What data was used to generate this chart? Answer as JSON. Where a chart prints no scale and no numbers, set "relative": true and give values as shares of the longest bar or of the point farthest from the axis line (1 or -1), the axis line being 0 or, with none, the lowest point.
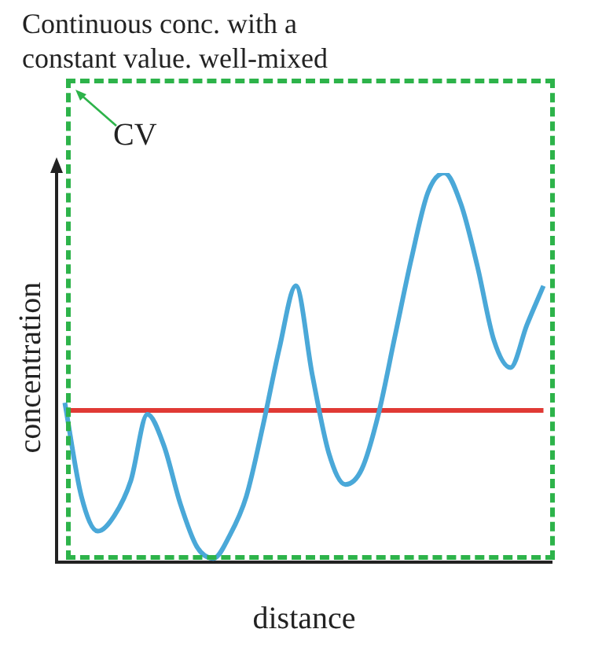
{
  "chart_data": {
    "type": "line",
    "title": "Continuous conc. with a constant value. well-mixed",
    "xlabel": "distance",
    "ylabel": "concentration",
    "relative": true,
    "categories": [
      null,
      null,
      null,
      null,
      null,
      null,
      null,
      null,
      null,
      null,
      null,
      null,
      null,
      null,
      null,
      null,
      null,
      null,
      null,
      null,
      null,
      null,
      null,
      null,
      null,
      null,
      null,
      null,
      null,
      null
    ],
    "series": [
      {
        "color": "#4aa8d8",
        "values": [
          0.41,
          0.17,
          0.08,
          0.12,
          0.21,
          0.38,
          0.3,
          0.15,
          0.04,
          0.01,
          0.07,
          0.17,
          0.35,
          0.55,
          0.71,
          0.48,
          0.28,
          0.2,
          0.24,
          0.38,
          0.58,
          0.78,
          0.95,
          1,
          0.92,
          0.76,
          0.57,
          0.5,
          0.61,
          0.71
        ]
      },
      {
        "color": "#e03a35",
        "values": [
          0.39,
          0.39,
          0.39,
          0.39,
          0.39,
          0.39,
          0.39,
          0.39,
          0.39,
          0.39,
          0.39,
          0.39,
          0.39,
          0.39,
          0.39,
          0.39,
          0.39,
          0.39,
          0.39,
          0.39,
          0.39,
          0.39,
          0.39,
          0.39,
          0.39,
          0.39,
          0.39,
          0.39,
          0.39,
          0.39
        ]
      }
    ],
    "annotations": [
      "CV"
    ],
    "marker": "none",
    "grid": false,
    "legend": false
  }
}
